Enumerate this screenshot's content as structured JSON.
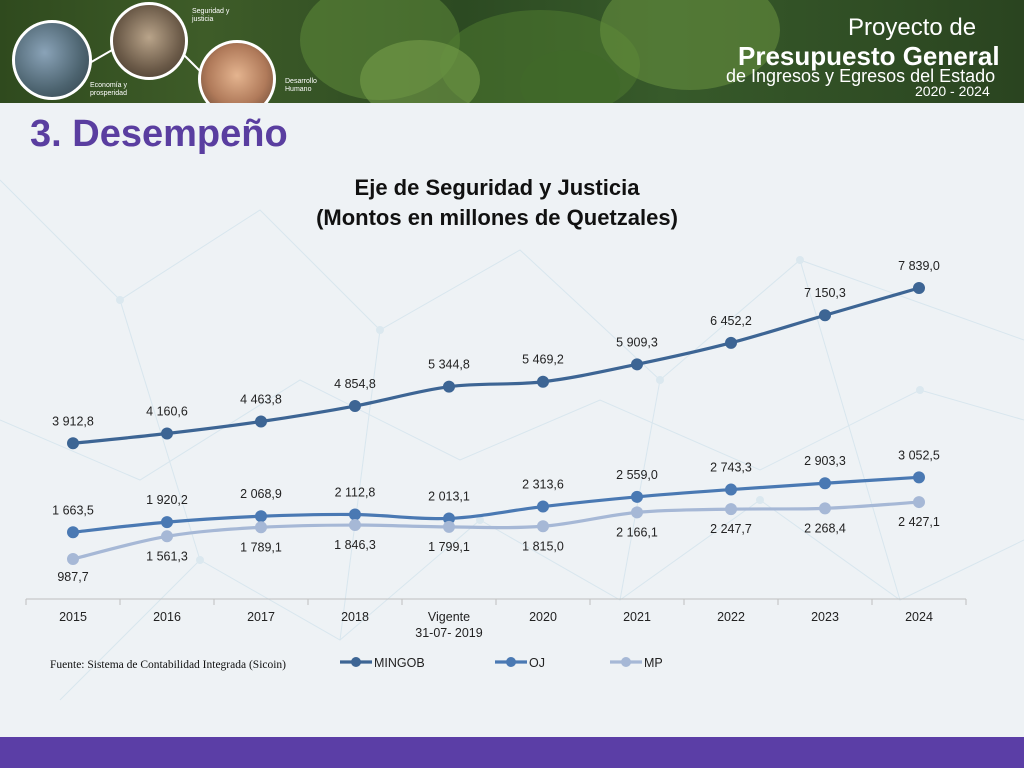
{
  "header": {
    "bubble_labels": [
      "Seguridad y justicia",
      "Economía y prosperidad",
      "Desarrollo Humano"
    ],
    "project_line1": "Proyecto de",
    "project_line2": "Presupuesto General",
    "project_line3": "de Ingresos y Egresos del Estado",
    "project_years": "2020 - 2024"
  },
  "slide_title": "3. Desempeño",
  "source_note": "Fuente: Sistema de Contabilidad Integrada (Sicoin)",
  "colors": {
    "MINGOB": "#3d6594",
    "OJ": "#4a79b3",
    "MP": "#a6b8d6",
    "title": "#5a3ea0",
    "footer": "#5b3ea6"
  },
  "chart_data": {
    "type": "line",
    "title_line1": "Eje de Seguridad y Justicia",
    "title_line2": "(Montos en millones de Quetzales)",
    "categories": [
      "2015",
      "2016",
      "2017",
      "2018",
      "Vigente\n31-07- 2019",
      "2020",
      "2021",
      "2022",
      "2023",
      "2024"
    ],
    "series": [
      {
        "name": "MINGOB",
        "values": [
          3912.8,
          4160.6,
          4463.8,
          4854.8,
          5344.8,
          5469.2,
          5909.3,
          6452.2,
          7150.3,
          7839.0
        ],
        "labels": [
          "3 912,8",
          "4 160,6",
          "4 463,8",
          "4 854,8",
          "5 344,8",
          "5 469,2",
          "5 909,3",
          "6 452,2",
          "7 150,3",
          "7 839,0"
        ]
      },
      {
        "name": "OJ",
        "values": [
          1663.5,
          1920.2,
          2068.9,
          2112.8,
          2013.1,
          2313.6,
          2559.0,
          2743.3,
          2903.3,
          3052.5
        ],
        "labels": [
          "1 663,5",
          "1 920,2",
          "2 068,9",
          "2 112,8",
          "2 013,1",
          "2 313,6",
          "2 559,0",
          "2 743,3",
          "2 903,3",
          "3 052,5"
        ]
      },
      {
        "name": "MP",
        "values": [
          987.7,
          1561.3,
          1789.1,
          1846.3,
          1799.1,
          1815.0,
          2166.1,
          2247.7,
          2268.4,
          2427.1
        ],
        "labels": [
          "987,7",
          "1 561,3",
          "1 789,1",
          "1 846,3",
          "1 799,1",
          "1 815,0",
          "2 166,1",
          "2 247,7",
          "2 268,4",
          "2 427,1"
        ]
      }
    ],
    "ylim": [
      0,
      8000
    ],
    "legend_position": "bottom",
    "grid": false,
    "y_axis_visible": false
  }
}
